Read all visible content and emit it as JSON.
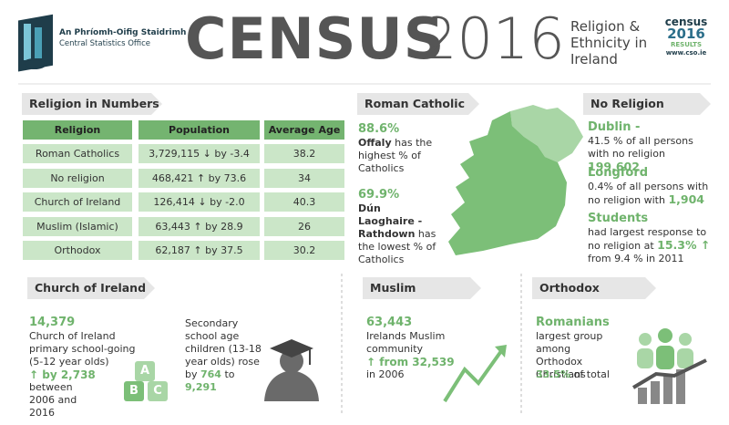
{
  "header": {
    "org_irish": "An Phríomh-Oifig Staidrimh",
    "org_english": "Central Statistics Office",
    "title": "CENSUS",
    "year": "2016",
    "subtitle": "Religion & Ethnicity in Ireland",
    "badge": {
      "word": "census",
      "year": "2016",
      "results": "RESULTS",
      "url": "www.cso.ie"
    }
  },
  "religion_in_numbers": {
    "title": "Religion in Numbers",
    "columns": [
      "Religion",
      "Population",
      "Average Age"
    ],
    "rows": [
      {
        "religion": "Roman Catholics",
        "population": "3,729,115",
        "change": "↓ by -3.4",
        "average_age": 38.2
      },
      {
        "religion": "No religion",
        "population": "468,421",
        "change": "↑ by 73.6",
        "average_age": 34
      },
      {
        "religion": "Church of Ireland",
        "population": "126,414",
        "change": "↓ by -2.0",
        "average_age": 40.3
      },
      {
        "religion": "Muslim (Islamic)",
        "population": "63,443",
        "change": "↑ by 28.9",
        "average_age": 26
      },
      {
        "religion": "Orthodox",
        "population": "62,187",
        "change": "↑ by 37.5",
        "average_age": 30.2
      }
    ]
  },
  "roman_catholic": {
    "title": "Roman Catholic",
    "highest": {
      "value": "88.6%",
      "place": "Offaly",
      "text": "has the highest % of Catholics"
    },
    "lowest": {
      "value": "69.9%",
      "place": "Dún Laoghaire - Rathdown",
      "text": "has the lowest % of Catholics"
    }
  },
  "no_religion": {
    "title": "No Religion",
    "items": [
      {
        "heading": "Dublin -",
        "text": "41.5 % of all persons with no religion",
        "figure": "199,602"
      },
      {
        "heading": "Longford",
        "text": "0.4% of all persons with no religion with",
        "figure": "1,904"
      },
      {
        "heading": "Students",
        "text": "had largest response to no religion at",
        "figure": "15.3% ↑",
        "tail": "from 9.4 % in 2011"
      }
    ]
  },
  "church_of_ireland": {
    "title": "Church of Ireland",
    "primary": {
      "figure": "14,379",
      "text": "Church of Ireland primary school-going (5-12 year olds)",
      "change": "↑ by 2,738",
      "period": "between 2006 and 2016"
    },
    "secondary": {
      "text": "Secondary school age children (13-18 year olds) rose by",
      "increase": "764",
      "to": "to",
      "total": "9,291"
    },
    "blocks": [
      "A",
      "B",
      "C"
    ]
  },
  "muslim": {
    "title": "Muslim",
    "figure": "63,443",
    "text": "Irelands Muslim community",
    "change": "↑ from 32,539",
    "period": "in 2006"
  },
  "orthodox": {
    "title": "Orthodox",
    "figure": "Romanians",
    "text": "largest group among Orthodox Christians",
    "share": "33.5%",
    "tail": "of total"
  }
}
